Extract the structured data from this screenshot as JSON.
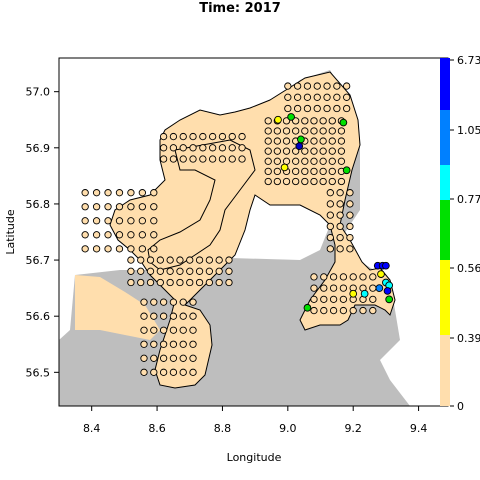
{
  "title": "Time: 2017",
  "xlabel": "Longitude",
  "ylabel": "Latitude",
  "x_ticks": [
    "8.4",
    "8.6",
    "8.8",
    "9.0",
    "9.2",
    "9.4"
  ],
  "y_ticks": [
    "57.0",
    "56.9",
    "56.8",
    "56.7",
    "56.6",
    "56.5"
  ],
  "colorbar": {
    "tick_labels": [
      "6.73",
      "1.05",
      "0.77",
      "0.56",
      "0.39",
      "0"
    ],
    "colors": [
      "#ffdead",
      "#ffff00",
      "#00e000",
      "#00ffff",
      "#0080ff",
      "#0000ff"
    ]
  },
  "colors": {
    "land": "#bebebe",
    "water": "#ffdead",
    "station_fill": "#ffdead"
  },
  "chart_data": {
    "type": "map-scatter",
    "xlim": [
      8.3,
      9.49
    ],
    "ylim": [
      56.44,
      57.06
    ],
    "highlighted_stations": [
      {
        "lon": 8.97,
        "lat": 56.95,
        "color": "#ffff00"
      },
      {
        "lon": 9.01,
        "lat": 56.955,
        "color": "#00e000"
      },
      {
        "lon": 9.04,
        "lat": 56.915,
        "color": "#00e000"
      },
      {
        "lon": 9.035,
        "lat": 56.903,
        "color": "#0000c0"
      },
      {
        "lon": 9.17,
        "lat": 56.945,
        "color": "#00e000"
      },
      {
        "lon": 9.18,
        "lat": 56.86,
        "color": "#00e000"
      },
      {
        "lon": 8.99,
        "lat": 56.865,
        "color": "#ffff00"
      },
      {
        "lon": 9.06,
        "lat": 56.615,
        "color": "#00e000"
      },
      {
        "lon": 9.2,
        "lat": 56.64,
        "color": "#ffff00"
      },
      {
        "lon": 9.235,
        "lat": 56.64,
        "color": "#00ffff"
      },
      {
        "lon": 9.275,
        "lat": 56.69,
        "color": "#0000ff"
      },
      {
        "lon": 9.29,
        "lat": 56.69,
        "color": "#0000ff"
      },
      {
        "lon": 9.3,
        "lat": 56.69,
        "color": "#0000ff"
      },
      {
        "lon": 9.285,
        "lat": 56.675,
        "color": "#ffff00"
      },
      {
        "lon": 9.3,
        "lat": 56.66,
        "color": "#00ffff"
      },
      {
        "lon": 9.31,
        "lat": 56.655,
        "color": "#00ffff"
      },
      {
        "lon": 9.305,
        "lat": 56.645,
        "color": "#0000ff"
      },
      {
        "lon": 9.28,
        "lat": 56.65,
        "color": "#0080ff"
      },
      {
        "lon": 9.31,
        "lat": 56.63,
        "color": "#00e000"
      }
    ]
  }
}
